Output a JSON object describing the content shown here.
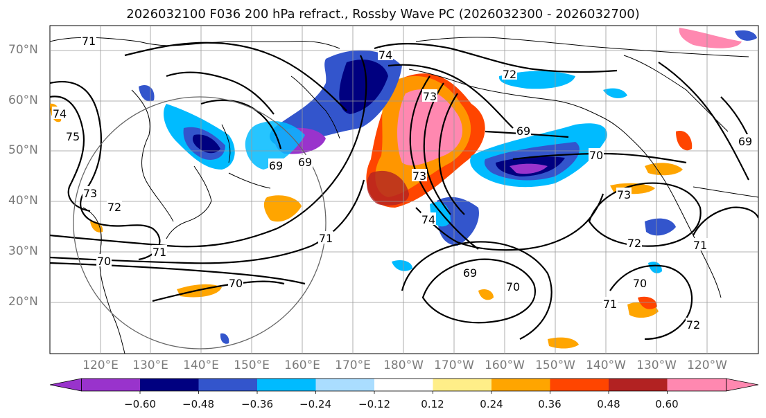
{
  "title": "2026032100 F036 200 hPa refract., Rossby Wave PC (2026032300 - 2026032700)",
  "lat_labels": [
    "70°N",
    "60°N",
    "50°N",
    "40°N",
    "30°N",
    "20°N"
  ],
  "lon_labels": [
    "120°E",
    "130°E",
    "140°E",
    "150°E",
    "160°E",
    "170°E",
    "180°W",
    "170°W",
    "160°W",
    "150°W",
    "140°W",
    "130°W",
    "120°W"
  ],
  "colorbar": {
    "ticks": [
      "−0.60",
      "−0.48",
      "−0.36",
      "−0.24",
      "−0.12",
      "0.12",
      "0.24",
      "0.36",
      "0.48",
      "0.60"
    ],
    "colors": [
      "#9933cc",
      "#000080",
      "#3355cc",
      "#00bbff",
      "#aaddff",
      "#ffffff",
      "#ffee88",
      "#ffa500",
      "#ff4500",
      "#b22222",
      "#ff88b0"
    ]
  },
  "contour_labels": [
    "71",
    "74",
    "75",
    "73",
    "72",
    "71",
    "70",
    "71",
    "70",
    "69",
    "69",
    "74",
    "73",
    "73",
    "74",
    "72",
    "69",
    "70",
    "69",
    "70",
    "73",
    "72",
    "71",
    "70",
    "71",
    "72",
    "69"
  ]
}
